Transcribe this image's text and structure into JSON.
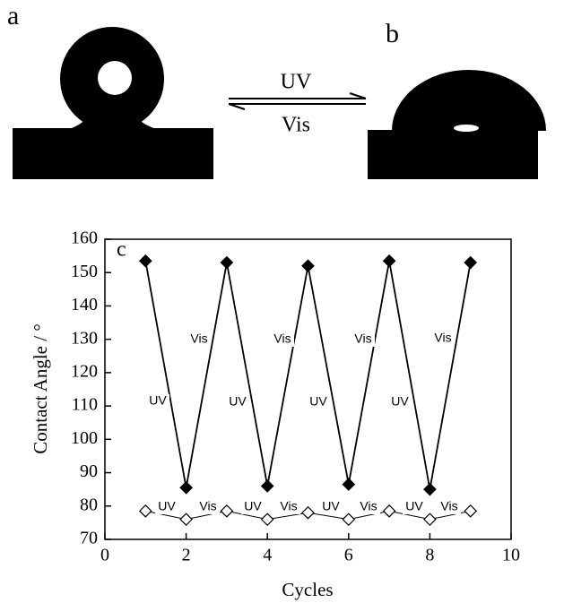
{
  "panels": {
    "label_a": "a",
    "label_b": "b",
    "arrow_top": "UV",
    "arrow_bottom": "Vis"
  },
  "chart_data": {
    "type": "line",
    "panel_label": "c",
    "x_label": "Cycles",
    "y_label": "Contact Angle / °",
    "x": [
      1,
      2,
      3,
      4,
      5,
      6,
      7,
      8,
      9
    ],
    "series": [
      {
        "color": "#000000",
        "marker": "filled-diamond",
        "values": [
          153.5,
          85.5,
          153,
          86,
          152,
          86.5,
          153.5,
          85,
          153
        ]
      },
      {
        "color": "#000000",
        "marker": "open-diamond",
        "values": [
          78.5,
          76,
          78.5,
          76,
          78,
          76,
          78.5,
          76,
          78.5
        ]
      }
    ],
    "annotations": [
      "Vis",
      "Vis",
      "Vis",
      "Vis",
      "UV",
      "UV",
      "UV",
      "UV",
      "UV",
      "UV",
      "UV",
      "UV",
      "Vis",
      "Vis",
      "Vis",
      "Vis"
    ],
    "xlim": [
      0,
      10
    ],
    "xticks": [
      0,
      2,
      4,
      6,
      8,
      10
    ],
    "ylim": [
      70,
      160
    ],
    "yticks": [
      70,
      80,
      90,
      100,
      110,
      120,
      130,
      140,
      150,
      160
    ],
    "grid": false
  }
}
